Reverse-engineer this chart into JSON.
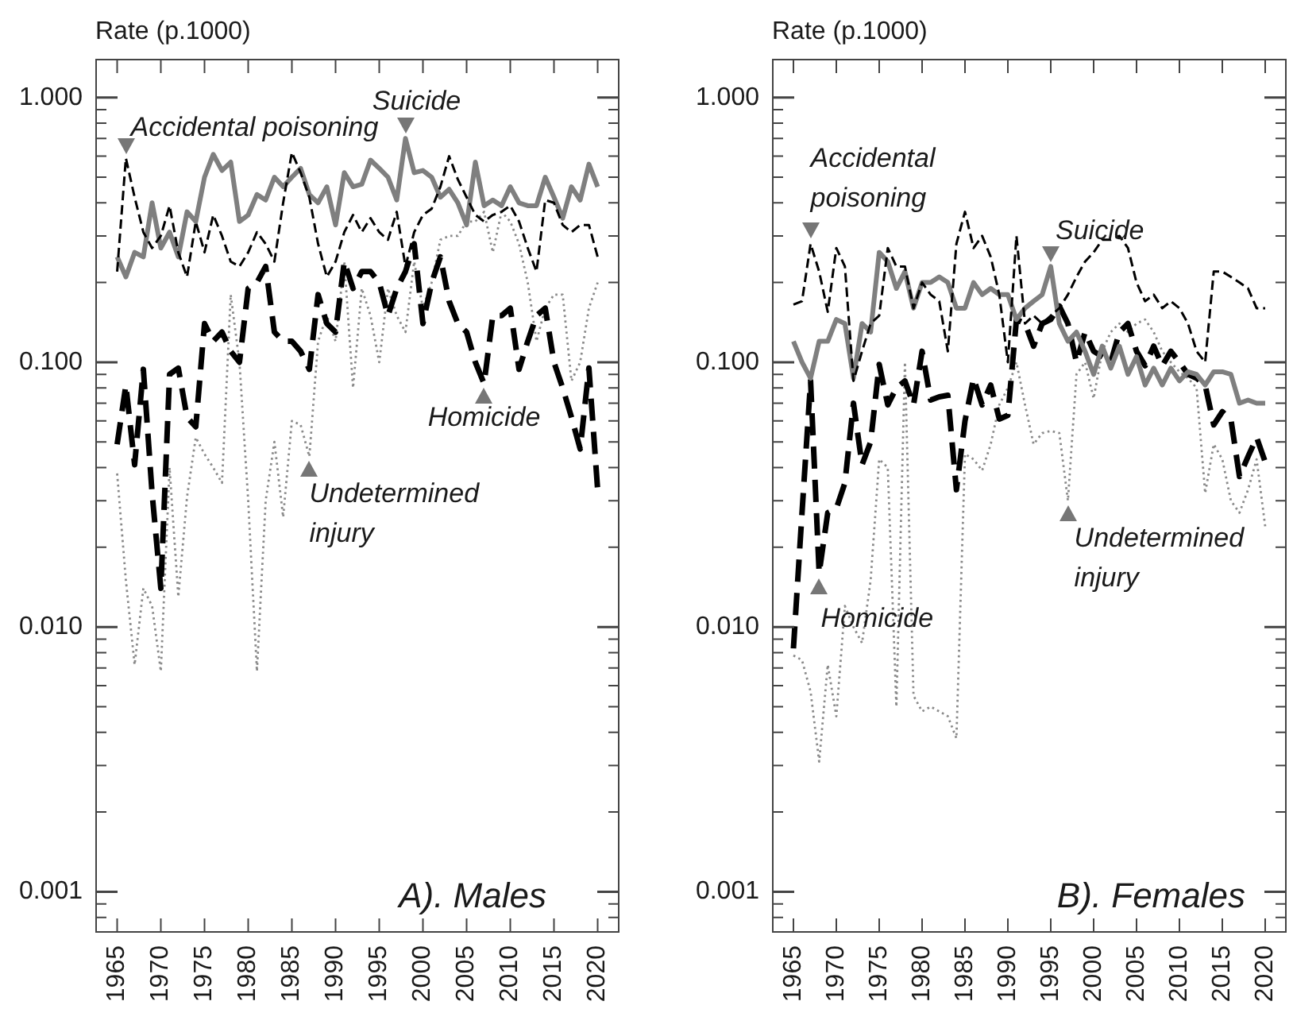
{
  "chart_data": [
    {
      "type": "line",
      "title": "A). Males",
      "ylabel": "Rate (p.1000)",
      "log": true,
      "x": [
        1965,
        1966,
        1967,
        1968,
        1969,
        1970,
        1971,
        1972,
        1973,
        1974,
        1975,
        1976,
        1977,
        1978,
        1979,
        1980,
        1981,
        1982,
        1983,
        1984,
        1985,
        1986,
        1987,
        1988,
        1989,
        1990,
        1991,
        1992,
        1993,
        1994,
        1995,
        1996,
        1997,
        1998,
        1999,
        2000,
        2001,
        2002,
        2003,
        2004,
        2005,
        2006,
        2007,
        2008,
        2009,
        2010,
        2011,
        2012,
        2013,
        2014,
        2015,
        2016,
        2017,
        2018,
        2019,
        2020
      ],
      "series": [
        {
          "color": "#000000",
          "line_style": "dashed",
          "values": [
            0.22,
            0.59,
            0.42,
            0.31,
            0.27,
            0.3,
            0.39,
            0.26,
            0.21,
            0.34,
            0.26,
            0.36,
            0.3,
            0.24,
            0.23,
            0.26,
            0.31,
            0.28,
            0.24,
            0.4,
            0.62,
            0.52,
            0.42,
            0.28,
            0.21,
            0.24,
            0.31,
            0.36,
            0.31,
            0.35,
            0.31,
            0.29,
            0.37,
            0.23,
            0.31,
            0.36,
            0.38,
            0.46,
            0.6,
            0.49,
            0.42,
            0.36,
            0.34,
            0.36,
            0.37,
            0.39,
            0.34,
            0.27,
            0.22,
            0.41,
            0.4,
            0.33,
            0.31,
            0.33,
            0.33,
            0.25
          ]
        },
        {
          "color": "#7f7f7f",
          "line_style": "solid",
          "values": [
            0.25,
            0.21,
            0.26,
            0.25,
            0.4,
            0.27,
            0.31,
            0.25,
            0.37,
            0.34,
            0.5,
            0.61,
            0.53,
            0.57,
            0.34,
            0.36,
            0.43,
            0.41,
            0.5,
            0.46,
            0.5,
            0.54,
            0.43,
            0.4,
            0.46,
            0.33,
            0.52,
            0.46,
            0.47,
            0.58,
            0.54,
            0.5,
            0.41,
            0.7,
            0.52,
            0.53,
            0.5,
            0.42,
            0.45,
            0.4,
            0.33,
            0.57,
            0.39,
            0.41,
            0.39,
            0.46,
            0.4,
            0.39,
            0.39,
            0.5,
            0.42,
            0.35,
            0.46,
            0.41,
            0.56,
            0.46
          ]
        },
        {
          "color": "#000000",
          "line_style": "dashed",
          "values": [
            0.049,
            0.082,
            0.041,
            0.094,
            0.032,
            0.014,
            0.09,
            0.095,
            0.062,
            0.057,
            0.14,
            0.12,
            0.13,
            0.11,
            0.1,
            0.19,
            0.2,
            0.23,
            0.13,
            0.12,
            0.12,
            0.11,
            0.094,
            0.18,
            0.14,
            0.13,
            0.24,
            0.19,
            0.22,
            0.22,
            0.2,
            0.15,
            0.19,
            0.22,
            0.28,
            0.14,
            0.2,
            0.25,
            0.17,
            0.14,
            0.13,
            0.1,
            0.083,
            0.15,
            0.15,
            0.16,
            0.094,
            0.12,
            0.15,
            0.16,
            0.1,
            0.08,
            0.062,
            0.047,
            0.095,
            0.033
          ]
        },
        {
          "color": "#8a8a8a",
          "line_style": "dotted",
          "values": [
            0.038,
            0.015,
            0.0072,
            0.014,
            0.012,
            0.0068,
            0.04,
            0.013,
            0.031,
            0.052,
            0.045,
            0.04,
            0.035,
            0.18,
            0.1,
            0.03,
            0.0068,
            0.03,
            0.05,
            0.026,
            0.06,
            0.058,
            0.044,
            0.12,
            0.15,
            0.12,
            0.24,
            0.08,
            0.19,
            0.15,
            0.1,
            0.19,
            0.15,
            0.13,
            0.24,
            0.16,
            0.2,
            0.29,
            0.3,
            0.3,
            0.34,
            0.34,
            0.37,
            0.26,
            0.37,
            0.34,
            0.28,
            0.2,
            0.12,
            0.16,
            0.18,
            0.18,
            0.085,
            0.1,
            0.16,
            0.2
          ]
        }
      ],
      "xlim": [
        1962.5,
        2022.5
      ],
      "xticks": [
        1965,
        1970,
        1975,
        1980,
        1985,
        1990,
        1995,
        2000,
        2005,
        2010,
        2015,
        2020
      ],
      "ylim": [
        0.0007,
        1.4
      ],
      "yticks": [
        {
          "value": 0.0008,
          "label": null
        },
        {
          "value": 0.0009,
          "label": null
        },
        0.001,
        {
          "value": 0.002,
          "label": null
        },
        {
          "value": 0.003,
          "label": null
        },
        {
          "value": 0.004,
          "label": null
        },
        {
          "value": 0.005,
          "label": null
        },
        {
          "value": 0.006,
          "label": null
        },
        {
          "value": 0.007,
          "label": null
        },
        {
          "value": 0.008,
          "label": null
        },
        {
          "value": 0.009,
          "label": null
        },
        {
          "value": 0.01,
          "label": "0.010"
        },
        {
          "value": 0.02,
          "label": null
        },
        {
          "value": 0.03,
          "label": null
        },
        {
          "value": 0.04,
          "label": null
        },
        {
          "value": 0.05,
          "label": null
        },
        {
          "value": 0.06,
          "label": null
        },
        {
          "value": 0.07,
          "label": null
        },
        {
          "value": 0.08,
          "label": null
        },
        {
          "value": 0.09,
          "label": null
        },
        {
          "value": 0.1,
          "label": "0.100"
        },
        {
          "value": 0.2,
          "label": null
        },
        {
          "value": 0.3,
          "label": null
        },
        {
          "value": 0.4,
          "label": null
        },
        {
          "value": 0.5,
          "label": null
        },
        {
          "value": 0.6,
          "label": null
        },
        {
          "value": 0.7,
          "label": null
        },
        {
          "value": 0.8,
          "label": null
        },
        {
          "value": 0.9,
          "label": null
        },
        {
          "value": 1,
          "label": "1.000"
        }
      ],
      "annotations": [
        {
          "text": "Accidental poisoning",
          "x": 1966,
          "y": 0.59
        },
        {
          "text": "Suicide",
          "x": 1998,
          "y": 0.7
        },
        {
          "text": "Homicide",
          "x": 2007,
          "y": 0.083
        },
        {
          "text": "Undetermined injury",
          "x": 1987,
          "y": 0.044
        }
      ]
    },
    {
      "type": "line",
      "title": "B). Females",
      "ylabel": "Rate (p.1000)",
      "log": true,
      "x": [
        1965,
        1966,
        1967,
        1968,
        1969,
        1970,
        1971,
        1972,
        1973,
        1974,
        1975,
        1976,
        1977,
        1978,
        1979,
        1980,
        1981,
        1982,
        1983,
        1984,
        1985,
        1986,
        1987,
        1988,
        1989,
        1990,
        1991,
        1992,
        1993,
        1994,
        1995,
        1996,
        1997,
        1998,
        1999,
        2000,
        2001,
        2002,
        2003,
        2004,
        2005,
        2006,
        2007,
        2008,
        2009,
        2010,
        2011,
        2012,
        2013,
        2014,
        2015,
        2016,
        2017,
        2018,
        2019,
        2020
      ],
      "series": [
        {
          "color": "#000000",
          "line_style": "dashed",
          "values": [
            0.165,
            0.17,
            0.28,
            0.22,
            0.155,
            0.27,
            0.23,
            0.085,
            0.11,
            0.14,
            0.15,
            0.27,
            0.23,
            0.23,
            0.16,
            0.2,
            0.18,
            0.17,
            0.11,
            0.28,
            0.37,
            0.27,
            0.3,
            0.25,
            0.18,
            0.1,
            0.3,
            0.14,
            0.15,
            0.14,
            0.15,
            0.16,
            0.18,
            0.21,
            0.24,
            0.26,
            0.29,
            0.29,
            0.3,
            0.27,
            0.2,
            0.17,
            0.18,
            0.16,
            0.17,
            0.16,
            0.14,
            0.11,
            0.1,
            0.22,
            0.22,
            0.21,
            0.2,
            0.19,
            0.16,
            0.16
          ]
        },
        {
          "color": "#7f7f7f",
          "line_style": "solid",
          "values": [
            0.12,
            0.1,
            0.087,
            0.12,
            0.12,
            0.145,
            0.14,
            0.087,
            0.14,
            0.13,
            0.26,
            0.24,
            0.19,
            0.22,
            0.16,
            0.2,
            0.2,
            0.21,
            0.2,
            0.16,
            0.16,
            0.2,
            0.18,
            0.19,
            0.18,
            0.18,
            0.145,
            0.16,
            0.17,
            0.18,
            0.23,
            0.14,
            0.12,
            0.13,
            0.11,
            0.09,
            0.115,
            0.095,
            0.115,
            0.09,
            0.105,
            0.082,
            0.095,
            0.082,
            0.095,
            0.085,
            0.092,
            0.09,
            0.082,
            0.092,
            0.092,
            0.09,
            0.07,
            0.072,
            0.07,
            0.07
          ]
        },
        {
          "color": "#000000",
          "line_style": "dashed",
          "values": [
            0.0083,
            0.027,
            0.085,
            0.016,
            0.027,
            0.028,
            0.035,
            0.07,
            0.041,
            0.05,
            0.098,
            0.069,
            0.08,
            0.085,
            0.069,
            0.11,
            0.072,
            0.074,
            0.075,
            0.033,
            0.06,
            0.087,
            0.069,
            0.082,
            0.061,
            0.063,
            0.145,
            0.14,
            0.115,
            0.14,
            0.145,
            0.163,
            0.14,
            0.1,
            0.13,
            0.11,
            0.105,
            0.1,
            0.13,
            0.14,
            0.11,
            0.097,
            0.115,
            0.097,
            0.11,
            0.1,
            0.09,
            0.087,
            0.082,
            0.058,
            0.065,
            0.061,
            0.037,
            0.044,
            0.052,
            0.042
          ]
        },
        {
          "color": "#8a8a8a",
          "line_style": "dotted",
          "values": [
            0.0078,
            0.0075,
            0.0057,
            0.0031,
            0.0072,
            0.0046,
            0.012,
            0.01,
            0.0087,
            0.015,
            0.043,
            0.04,
            0.005,
            0.1,
            0.0055,
            0.0048,
            0.005,
            0.0048,
            0.0046,
            0.0038,
            0.045,
            0.043,
            0.039,
            0.049,
            0.069,
            0.08,
            0.1,
            0.069,
            0.049,
            0.054,
            0.055,
            0.054,
            0.03,
            0.09,
            0.1,
            0.073,
            0.11,
            0.13,
            0.14,
            0.13,
            0.14,
            0.145,
            0.13,
            0.11,
            0.1,
            0.092,
            0.087,
            0.08,
            0.032,
            0.049,
            0.043,
            0.03,
            0.027,
            0.033,
            0.043,
            0.024
          ]
        }
      ],
      "xlim": [
        1962.5,
        2022.5
      ],
      "xticks": [
        1965,
        1970,
        1975,
        1980,
        1985,
        1990,
        1995,
        2000,
        2005,
        2010,
        2015,
        2020
      ],
      "ylim": [
        0.0007,
        1.4
      ],
      "yticks": [
        {
          "value": 0.0008,
          "label": null
        },
        {
          "value": 0.0009,
          "label": null
        },
        0.001,
        {
          "value": 0.002,
          "label": null
        },
        {
          "value": 0.003,
          "label": null
        },
        {
          "value": 0.004,
          "label": null
        },
        {
          "value": 0.005,
          "label": null
        },
        {
          "value": 0.006,
          "label": null
        },
        {
          "value": 0.007,
          "label": null
        },
        {
          "value": 0.008,
          "label": null
        },
        {
          "value": 0.009,
          "label": null
        },
        {
          "value": 0.01,
          "label": "0.010"
        },
        {
          "value": 0.02,
          "label": null
        },
        {
          "value": 0.03,
          "label": null
        },
        {
          "value": 0.04,
          "label": null
        },
        {
          "value": 0.05,
          "label": null
        },
        {
          "value": 0.06,
          "label": null
        },
        {
          "value": 0.07,
          "label": null
        },
        {
          "value": 0.08,
          "label": null
        },
        {
          "value": 0.09,
          "label": null
        },
        {
          "value": 0.1,
          "label": "0.100"
        },
        {
          "value": 0.2,
          "label": null
        },
        {
          "value": 0.3,
          "label": null
        },
        {
          "value": 0.4,
          "label": null
        },
        {
          "value": 0.5,
          "label": null
        },
        {
          "value": 0.6,
          "label": null
        },
        {
          "value": 0.7,
          "label": null
        },
        {
          "value": 0.8,
          "label": null
        },
        {
          "value": 0.9,
          "label": null
        },
        {
          "value": 1,
          "label": "1.000"
        }
      ],
      "annotations": [
        {
          "text": "Accidental poisoning",
          "x": 1967,
          "y": 0.28
        },
        {
          "text": "Suicide",
          "x": 1995,
          "y": 0.23
        },
        {
          "text": "Homicide",
          "x": 1968,
          "y": 0.016
        },
        {
          "text": "Undetermined injury",
          "x": 1997,
          "y": 0.03
        }
      ]
    }
  ]
}
